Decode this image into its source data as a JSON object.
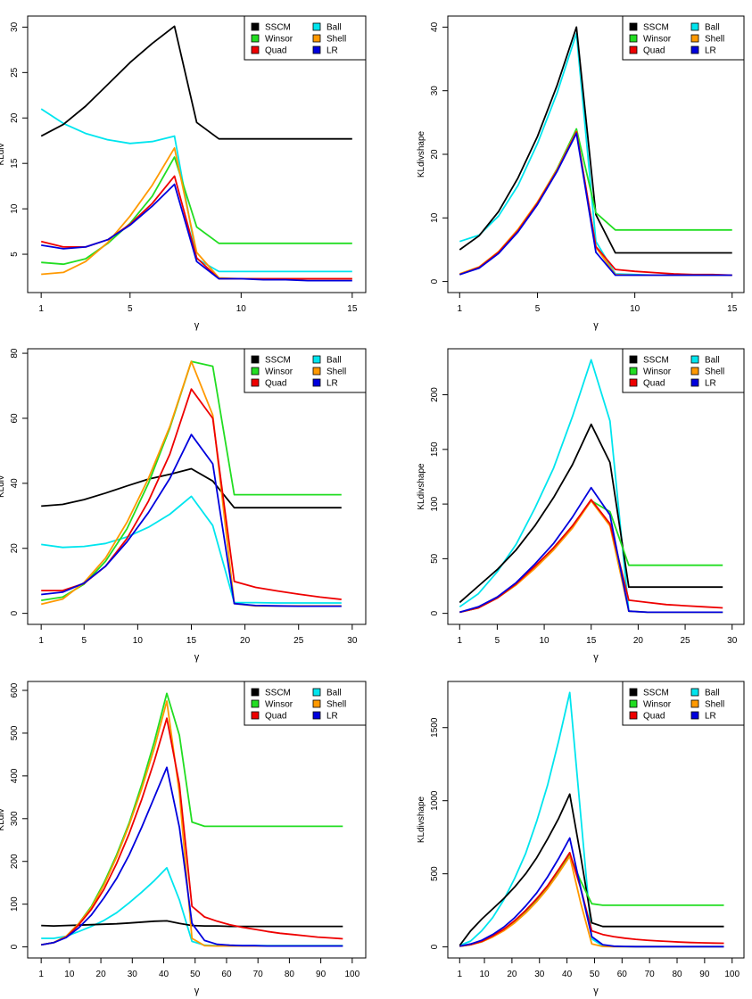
{
  "legend_labels": [
    "SSCM",
    "Ball",
    "Winsor",
    "Shell",
    "Quad",
    "LR"
  ],
  "colors": {
    "SSCM": "#000000",
    "Ball": "#00e5ee",
    "Winsor": "#22dd22",
    "Shell": "#ff9900",
    "Quad": "#ee0000",
    "LR": "#0000dd"
  },
  "chart_data": [
    {
      "type": "line",
      "xlabel": "γ",
      "ylabel": "KLdiv",
      "xlim": [
        1,
        15
      ],
      "ylim": [
        2,
        30
      ],
      "xticks": [
        1,
        5,
        10,
        15
      ],
      "yticks": [
        5,
        10,
        15,
        20,
        25,
        30
      ],
      "legend_position": "top-right",
      "grid": false,
      "x": [
        1,
        2,
        3,
        4,
        5,
        6,
        7,
        8,
        9,
        10,
        11,
        12,
        13,
        14,
        15
      ],
      "series": [
        {
          "name": "SSCM",
          "values": [
            18.0,
            19.3,
            21.3,
            23.7,
            26.1,
            28.2,
            30.1,
            19.5,
            17.7,
            17.7,
            17.7,
            17.7,
            17.7,
            17.7,
            17.7
          ]
        },
        {
          "name": "Ball",
          "values": [
            21.0,
            19.4,
            18.3,
            17.6,
            17.2,
            17.4,
            18.0,
            4.5,
            3.1,
            3.1,
            3.1,
            3.1,
            3.1,
            3.1,
            3.1
          ]
        },
        {
          "name": "Winsor",
          "values": [
            4.1,
            3.9,
            4.5,
            6.2,
            8.4,
            11.4,
            15.7,
            8.0,
            6.2,
            6.2,
            6.2,
            6.2,
            6.2,
            6.2,
            6.2
          ]
        },
        {
          "name": "Shell",
          "values": [
            2.8,
            3.0,
            4.2,
            6.3,
            9.2,
            12.6,
            16.7,
            5.2,
            2.4,
            2.3,
            2.3,
            2.3,
            2.3,
            2.3,
            2.3
          ]
        },
        {
          "name": "Quad",
          "values": [
            6.4,
            5.8,
            5.8,
            6.6,
            8.3,
            10.6,
            13.6,
            4.6,
            2.3,
            2.3,
            2.3,
            2.3,
            2.3,
            2.3,
            2.3
          ]
        },
        {
          "name": "LR",
          "values": [
            6.0,
            5.6,
            5.8,
            6.6,
            8.2,
            10.3,
            12.7,
            4.2,
            2.3,
            2.3,
            2.2,
            2.2,
            2.1,
            2.1,
            2.1
          ]
        }
      ]
    },
    {
      "type": "line",
      "xlabel": "γ",
      "ylabel": "KLdivshape",
      "xlim": [
        1,
        15
      ],
      "ylim": [
        0,
        40
      ],
      "xticks": [
        1,
        5,
        10,
        15
      ],
      "yticks": [
        0,
        10,
        20,
        30,
        40
      ],
      "legend_position": "top-right",
      "grid": false,
      "x": [
        1,
        2,
        3,
        4,
        5,
        6,
        7,
        8,
        9,
        10,
        11,
        12,
        13,
        14,
        15
      ],
      "series": [
        {
          "name": "SSCM",
          "values": [
            5.0,
            7.2,
            11.0,
            16.3,
            22.8,
            30.8,
            40.0,
            10.5,
            4.5,
            4.5,
            4.5,
            4.5,
            4.5,
            4.5,
            4.5
          ]
        },
        {
          "name": "Ball",
          "values": [
            6.3,
            7.3,
            10.3,
            15.1,
            21.7,
            29.6,
            39.0,
            6.3,
            1.2,
            1.1,
            1.0,
            1.0,
            1.0,
            1.0,
            1.0
          ]
        },
        {
          "name": "Winsor",
          "values": [
            1.1,
            2.2,
            4.6,
            8.0,
            12.4,
            17.7,
            24.0,
            10.8,
            8.1,
            8.1,
            8.1,
            8.1,
            8.1,
            8.1,
            8.1
          ]
        },
        {
          "name": "Shell",
          "values": [
            1.2,
            2.3,
            4.7,
            8.2,
            12.5,
            17.6,
            23.6,
            5.4,
            1.1,
            1.0,
            1.0,
            1.0,
            1.0,
            1.0,
            1.0
          ]
        },
        {
          "name": "Quad",
          "values": [
            1.1,
            2.2,
            4.6,
            8.0,
            12.3,
            17.4,
            23.5,
            5.5,
            1.9,
            1.6,
            1.4,
            1.2,
            1.1,
            1.1,
            1.0
          ]
        },
        {
          "name": "LR",
          "values": [
            1.1,
            2.1,
            4.4,
            7.8,
            12.1,
            17.3,
            23.3,
            4.6,
            1.0,
            1.0,
            1.0,
            1.0,
            1.0,
            1.0,
            1.0
          ]
        }
      ]
    },
    {
      "type": "line",
      "xlabel": "γ",
      "ylabel": "KLdiv",
      "xlim": [
        1,
        30
      ],
      "ylim": [
        0,
        78
      ],
      "xticks": [
        1,
        5,
        10,
        15,
        20,
        25,
        30
      ],
      "yticks": [
        0,
        20,
        40,
        60,
        80
      ],
      "legend_position": "top-right",
      "grid": false,
      "x": [
        1,
        3,
        5,
        7,
        9,
        11,
        13,
        15,
        17,
        19,
        21,
        23,
        25,
        27,
        29
      ],
      "series": [
        {
          "name": "SSCM",
          "values": [
            33.0,
            33.5,
            35.0,
            37.0,
            39.2,
            41.3,
            42.8,
            44.5,
            40.7,
            32.5,
            32.5,
            32.5,
            32.5,
            32.5,
            32.5
          ]
        },
        {
          "name": "Ball",
          "values": [
            21.2,
            20.3,
            20.6,
            21.5,
            23.5,
            26.5,
            30.5,
            36.0,
            27.0,
            3.3,
            3.3,
            3.2,
            3.2,
            3.2,
            3.2
          ]
        },
        {
          "name": "Winsor",
          "values": [
            4.0,
            5.0,
            9.0,
            16.0,
            26.0,
            40.0,
            57.0,
            77.5,
            76.0,
            36.5,
            36.5,
            36.5,
            36.5,
            36.5,
            36.5
          ]
        },
        {
          "name": "Shell",
          "values": [
            2.8,
            4.4,
            9.5,
            17.0,
            28.0,
            41.5,
            57.5,
            77.5,
            61.0,
            3.0,
            2.3,
            2.3,
            2.3,
            2.3,
            2.3
          ]
        },
        {
          "name": "Quad",
          "values": [
            7.0,
            7.0,
            9.2,
            14.5,
            23.0,
            34.5,
            49.0,
            69.0,
            60.0,
            9.8,
            8.0,
            6.9,
            5.9,
            5.0,
            4.3
          ]
        },
        {
          "name": "LR",
          "values": [
            5.8,
            6.5,
            9.3,
            14.5,
            22.0,
            31.0,
            41.5,
            55.0,
            46.0,
            3.0,
            2.4,
            2.3,
            2.2,
            2.2,
            2.2
          ]
        }
      ]
    },
    {
      "type": "line",
      "xlabel": "γ",
      "ylabel": "KLdivshape",
      "xlim": [
        1,
        30
      ],
      "ylim": [
        0,
        232
      ],
      "xticks": [
        1,
        5,
        10,
        15,
        20,
        25,
        30
      ],
      "yticks": [
        0,
        50,
        100,
        150,
        200
      ],
      "legend_position": "top-right",
      "grid": false,
      "x": [
        1,
        3,
        5,
        7,
        9,
        11,
        13,
        15,
        17,
        19,
        21,
        23,
        25,
        27,
        29
      ],
      "series": [
        {
          "name": "SSCM",
          "values": [
            10,
            25,
            40,
            58,
            80,
            106,
            136,
            173,
            138,
            24,
            24,
            24,
            24,
            24,
            24
          ]
        },
        {
          "name": "Ball",
          "values": [
            6,
            18,
            38,
            63,
            96,
            133,
            180,
            232,
            176,
            2,
            1,
            1,
            1,
            1,
            1
          ]
        },
        {
          "name": "Winsor",
          "values": [
            1,
            5,
            14,
            26,
            42,
            60,
            80,
            103,
            93,
            44,
            44,
            44,
            44,
            44,
            44
          ]
        },
        {
          "name": "Shell",
          "values": [
            1,
            5,
            14,
            26,
            41,
            58,
            78,
            103,
            80,
            2,
            1,
            1,
            1,
            1,
            1
          ]
        },
        {
          "name": "Quad",
          "values": [
            1,
            5,
            14,
            27,
            43,
            60,
            80,
            104,
            82,
            12,
            10,
            8,
            7,
            6,
            5
          ]
        },
        {
          "name": "LR",
          "values": [
            1,
            6,
            15,
            28,
            45,
            64,
            88,
            115,
            90,
            2,
            1,
            1,
            1,
            1,
            1
          ]
        }
      ]
    },
    {
      "type": "line",
      "xlabel": "γ",
      "ylabel": "KLdiv",
      "xlim": [
        1,
        100
      ],
      "ylim": [
        0,
        595
      ],
      "xticks": [
        1,
        10,
        20,
        30,
        40,
        50,
        60,
        70,
        80,
        90,
        100
      ],
      "yticks": [
        0,
        100,
        200,
        300,
        400,
        500,
        600
      ],
      "legend_position": "top-right",
      "grid": false,
      "x": [
        1,
        5,
        9,
        13,
        17,
        21,
        25,
        29,
        33,
        37,
        41,
        45,
        49,
        53,
        57,
        61,
        65,
        69,
        73,
        77,
        81,
        85,
        89,
        93,
        97
      ],
      "series": [
        {
          "name": "SSCM",
          "values": [
            50,
            49,
            50,
            51,
            52,
            53,
            54,
            56,
            58,
            60,
            61,
            55,
            50,
            49,
            49,
            48,
            48,
            48,
            48,
            48,
            48,
            48,
            48,
            48,
            48
          ]
        },
        {
          "name": "Ball",
          "values": [
            20,
            20,
            25,
            36,
            48,
            62,
            80,
            103,
            128,
            155,
            185,
            110,
            13,
            4,
            3,
            3,
            3,
            3,
            3,
            3,
            3,
            3,
            3,
            3,
            3
          ]
        },
        {
          "name": "Winsor",
          "values": [
            5,
            10,
            25,
            55,
            95,
            150,
            215,
            290,
            380,
            480,
            593,
            495,
            292,
            282,
            282,
            282,
            282,
            282,
            282,
            282,
            282,
            282,
            282,
            282,
            282
          ]
        },
        {
          "name": "Shell",
          "values": [
            5,
            10,
            25,
            55,
            92,
            145,
            210,
            285,
            370,
            465,
            575,
            360,
            20,
            3,
            2,
            2,
            2,
            2,
            2,
            2,
            2,
            2,
            2,
            2,
            2
          ]
        },
        {
          "name": "Quad",
          "values": [
            5,
            10,
            23,
            52,
            88,
            135,
            195,
            265,
            345,
            435,
            535,
            380,
            95,
            70,
            60,
            52,
            46,
            41,
            36,
            32,
            29,
            26,
            23,
            21,
            19
          ]
        },
        {
          "name": "LR",
          "values": [
            5,
            10,
            22,
            45,
            75,
            115,
            160,
            215,
            280,
            350,
            420,
            280,
            55,
            15,
            6,
            4,
            3,
            3,
            2,
            2,
            2,
            2,
            2,
            2,
            2
          ]
        }
      ]
    },
    {
      "type": "line",
      "xlabel": "γ",
      "ylabel": "KLdivshape",
      "xlim": [
        1,
        100
      ],
      "ylim": [
        0,
        1740
      ],
      "xticks": [
        1,
        10,
        20,
        30,
        40,
        50,
        60,
        70,
        80,
        90,
        100
      ],
      "yticks": [
        0,
        500,
        1000,
        1500
      ],
      "legend_position": "top-right",
      "grid": false,
      "x": [
        1,
        5,
        9,
        13,
        17,
        21,
        25,
        29,
        33,
        37,
        41,
        45,
        49,
        53,
        57,
        61,
        65,
        69,
        73,
        77,
        81,
        85,
        89,
        93,
        97
      ],
      "series": [
        {
          "name": "SSCM",
          "values": [
            10,
            110,
            190,
            260,
            330,
            410,
            500,
            610,
            740,
            880,
            1045,
            620,
            165,
            140,
            140,
            140,
            140,
            140,
            140,
            140,
            140,
            140,
            140,
            140,
            140
          ]
        },
        {
          "name": "Ball",
          "values": [
            10,
            40,
            110,
            200,
            320,
            470,
            640,
            860,
            1110,
            1410,
            1740,
            900,
            55,
            8,
            3,
            2,
            2,
            2,
            2,
            2,
            2,
            2,
            2,
            2,
            2
          ]
        },
        {
          "name": "Winsor",
          "values": [
            5,
            15,
            35,
            70,
            115,
            170,
            240,
            320,
            410,
            510,
            630,
            450,
            295,
            285,
            285,
            285,
            285,
            285,
            285,
            285,
            285,
            285,
            285,
            285,
            285
          ]
        },
        {
          "name": "Shell",
          "values": [
            5,
            15,
            35,
            68,
            110,
            165,
            232,
            310,
            400,
            505,
            620,
            300,
            20,
            3,
            2,
            2,
            2,
            2,
            2,
            2,
            2,
            2,
            2,
            2,
            2
          ]
        },
        {
          "name": "Quad",
          "values": [
            5,
            15,
            38,
            75,
            120,
            180,
            250,
            330,
            420,
            530,
            645,
            400,
            110,
            85,
            70,
            60,
            52,
            46,
            41,
            37,
            33,
            30,
            28,
            26,
            25
          ]
        },
        {
          "name": "LR",
          "values": [
            5,
            20,
            45,
            85,
            135,
            200,
            280,
            370,
            480,
            605,
            745,
            400,
            70,
            15,
            5,
            3,
            2,
            2,
            2,
            2,
            2,
            2,
            2,
            2,
            2
          ]
        }
      ]
    }
  ]
}
